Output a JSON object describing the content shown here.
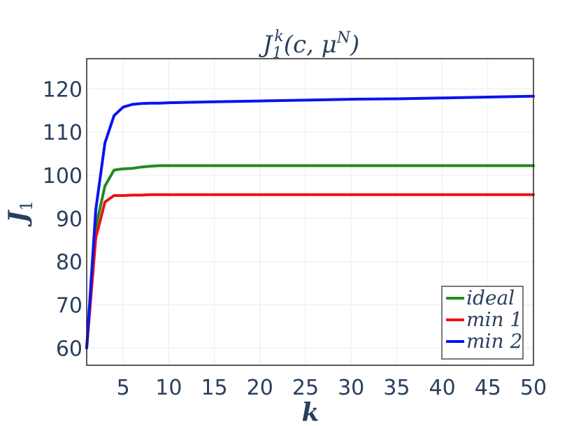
{
  "chart_data": {
    "type": "line",
    "title_main": "J",
    "title_sub": "1",
    "title_sup": "k",
    "title_args_open": "(c, μ",
    "title_args_sup": "N",
    "title_args_close": ")",
    "xlabel": "k",
    "ylabel_main": "J",
    "ylabel_sub": "1",
    "xlim": [
      1,
      50
    ],
    "ylim": [
      56,
      127
    ],
    "xticks": [
      5,
      10,
      15,
      20,
      25,
      30,
      35,
      40,
      45,
      50
    ],
    "yticks": [
      60,
      70,
      80,
      90,
      100,
      110,
      120
    ],
    "grid": true,
    "legend_position": "bottom-right",
    "x": [
      1,
      2,
      3,
      4,
      5,
      6,
      7,
      8,
      9,
      10,
      15,
      20,
      25,
      30,
      35,
      40,
      45,
      50
    ],
    "series": [
      {
        "name": "ideal",
        "color": "#228b22",
        "values": [
          60,
          88,
          97.5,
          101.2,
          101.5,
          101.6,
          101.9,
          102.1,
          102.2,
          102.2,
          102.2,
          102.2,
          102.2,
          102.2,
          102.2,
          102.2,
          102.2,
          102.2
        ]
      },
      {
        "name": "min 1",
        "color": "#ee1111",
        "values": [
          60,
          85.5,
          93.8,
          95.3,
          95.3,
          95.4,
          95.4,
          95.5,
          95.5,
          95.5,
          95.5,
          95.5,
          95.5,
          95.5,
          95.5,
          95.5,
          95.5,
          95.5
        ]
      },
      {
        "name": "min 2",
        "color": "#0a14ee",
        "values": [
          60,
          92,
          107.5,
          113.8,
          115.8,
          116.4,
          116.6,
          116.7,
          116.7,
          116.8,
          117,
          117.2,
          117.4,
          117.6,
          117.7,
          117.9,
          118.1,
          118.3
        ]
      }
    ]
  }
}
